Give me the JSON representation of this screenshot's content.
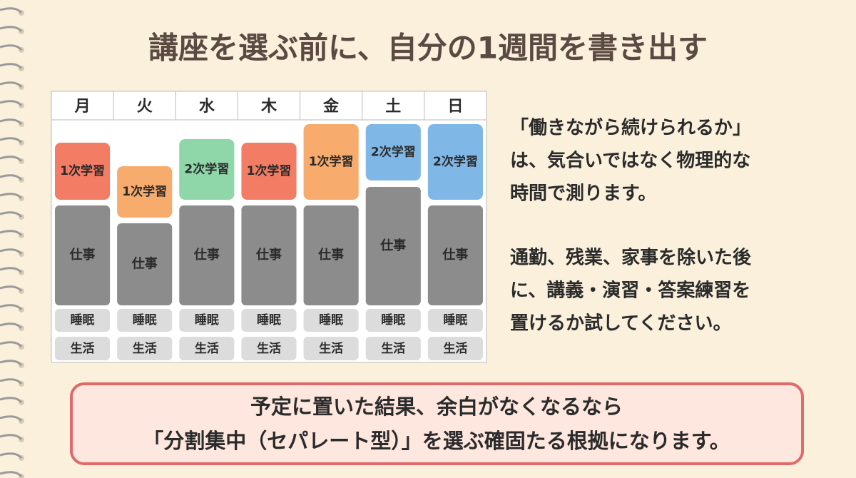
{
  "header": {
    "title": "講座を選ぶ前に、自分の1週間を書き出す"
  },
  "schedule": {
    "days": [
      {
        "day": "月",
        "study": "1次学習",
        "work": "仕事",
        "sleep": "睡眠",
        "life": "生活"
      },
      {
        "day": "火",
        "study": "1次学習",
        "work": "仕事",
        "sleep": "睡眠",
        "life": "生活"
      },
      {
        "day": "水",
        "study": "2次学習",
        "work": "仕事",
        "sleep": "睡眠",
        "life": "生活"
      },
      {
        "day": "木",
        "study": "1次学習",
        "work": "仕事",
        "sleep": "睡眠",
        "life": "生活"
      },
      {
        "day": "金",
        "study": "1次学習",
        "work": "仕事",
        "sleep": "睡眠",
        "life": "生活"
      },
      {
        "day": "土",
        "study": "2次学習",
        "work": "仕事",
        "sleep": "睡眠",
        "life": "生活"
      },
      {
        "day": "日",
        "study": "2次学習",
        "work": "仕事",
        "sleep": "睡眠",
        "life": "生活"
      }
    ]
  },
  "body": {
    "paragraphs": [
      [
        "「働きながら続けられるか」",
        "は、気合いではなく物理的な",
        "時間で測ります。"
      ],
      [
        "通勤、残業、家事を除いた後",
        "に、講義・演習・答案練習を",
        "置けるか試してください。"
      ]
    ]
  },
  "callout": {
    "lines": [
      "予定に置いた結果、余白がなくなるなら",
      "「分割集中（セパレート型）」を選ぶ確固たる根拠になります。"
    ]
  }
}
